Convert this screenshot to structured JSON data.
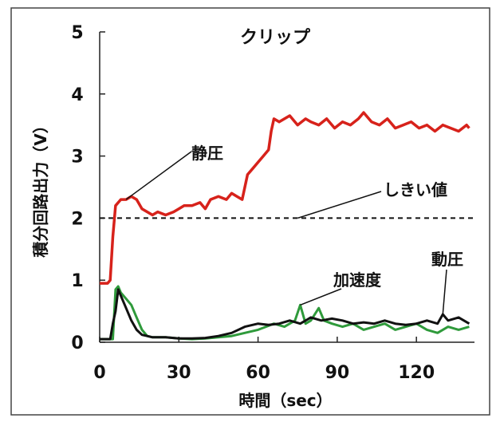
{
  "chart_data": {
    "type": "line",
    "title": "クリップ",
    "xlabel": "時間（sec）",
    "ylabel": "積分回路出力（V）",
    "xlim": [
      0,
      142
    ],
    "ylim": [
      0,
      5
    ],
    "x_ticks": [
      0,
      30,
      60,
      90,
      120
    ],
    "y_ticks": [
      0,
      1,
      2,
      3,
      4,
      5
    ],
    "grid": false,
    "threshold": {
      "label": "しきい値",
      "value": 2.0
    },
    "annotations": [
      {
        "text": "静圧",
        "points_to": [
          10,
          2.3
        ]
      },
      {
        "text": "しきい値",
        "points_to": [
          75,
          2.0
        ]
      },
      {
        "text": "加速度",
        "points_to": [
          76,
          0.6
        ]
      },
      {
        "text": "動圧",
        "points_to": [
          130,
          0.45
        ]
      }
    ],
    "series": [
      {
        "name": "静圧",
        "color": "#d7221b",
        "x": [
          0,
          2,
          3,
          4,
          5,
          6,
          8,
          10,
          12,
          14,
          16,
          18,
          20,
          22,
          25,
          28,
          30,
          32,
          35,
          38,
          40,
          42,
          45,
          48,
          50,
          52,
          54,
          56,
          58,
          60,
          62,
          64,
          65,
          66,
          68,
          70,
          72,
          75,
          78,
          80,
          83,
          86,
          89,
          92,
          95,
          98,
          100,
          103,
          106,
          109,
          112,
          115,
          118,
          121,
          124,
          127,
          130,
          133,
          136,
          139,
          140
        ],
        "values": [
          0.95,
          0.95,
          0.95,
          1.0,
          1.7,
          2.2,
          2.3,
          2.3,
          2.35,
          2.3,
          2.15,
          2.1,
          2.05,
          2.1,
          2.05,
          2.1,
          2.15,
          2.2,
          2.2,
          2.25,
          2.15,
          2.3,
          2.35,
          2.3,
          2.4,
          2.35,
          2.3,
          2.7,
          2.8,
          2.9,
          3.0,
          3.1,
          3.4,
          3.6,
          3.55,
          3.6,
          3.65,
          3.5,
          3.6,
          3.55,
          3.5,
          3.6,
          3.45,
          3.55,
          3.5,
          3.6,
          3.7,
          3.55,
          3.5,
          3.6,
          3.45,
          3.5,
          3.55,
          3.45,
          3.5,
          3.4,
          3.5,
          3.45,
          3.4,
          3.5,
          3.45
        ]
      },
      {
        "name": "加速度",
        "color": "#2f9a3b",
        "x": [
          0,
          4,
          5,
          6,
          7,
          8,
          10,
          12,
          14,
          16,
          18,
          20,
          25,
          30,
          35,
          40,
          45,
          50,
          55,
          60,
          63,
          66,
          70,
          74,
          76,
          78,
          80,
          83,
          85,
          88,
          92,
          96,
          100,
          104,
          108,
          112,
          116,
          120,
          124,
          128,
          132,
          136,
          140
        ],
        "values": [
          0.05,
          0.05,
          0.05,
          0.85,
          0.9,
          0.8,
          0.7,
          0.6,
          0.4,
          0.2,
          0.1,
          0.08,
          0.08,
          0.06,
          0.05,
          0.06,
          0.08,
          0.1,
          0.15,
          0.2,
          0.25,
          0.3,
          0.25,
          0.35,
          0.6,
          0.3,
          0.35,
          0.55,
          0.35,
          0.3,
          0.25,
          0.3,
          0.2,
          0.25,
          0.3,
          0.2,
          0.25,
          0.3,
          0.2,
          0.15,
          0.25,
          0.2,
          0.25
        ]
      },
      {
        "name": "動圧",
        "color": "#111111",
        "x": [
          0,
          4,
          5,
          6,
          7,
          8,
          10,
          12,
          14,
          16,
          18,
          20,
          25,
          30,
          35,
          40,
          45,
          50,
          55,
          60,
          64,
          68,
          72,
          76,
          80,
          84,
          88,
          92,
          96,
          100,
          104,
          108,
          112,
          116,
          120,
          124,
          128,
          130,
          132,
          136,
          140
        ],
        "values": [
          0.05,
          0.05,
          0.3,
          0.5,
          0.85,
          0.75,
          0.55,
          0.35,
          0.2,
          0.12,
          0.1,
          0.08,
          0.08,
          0.06,
          0.06,
          0.07,
          0.1,
          0.15,
          0.25,
          0.3,
          0.28,
          0.3,
          0.35,
          0.3,
          0.4,
          0.35,
          0.38,
          0.35,
          0.3,
          0.32,
          0.3,
          0.35,
          0.3,
          0.28,
          0.3,
          0.35,
          0.3,
          0.45,
          0.35,
          0.4,
          0.3
        ]
      }
    ]
  }
}
